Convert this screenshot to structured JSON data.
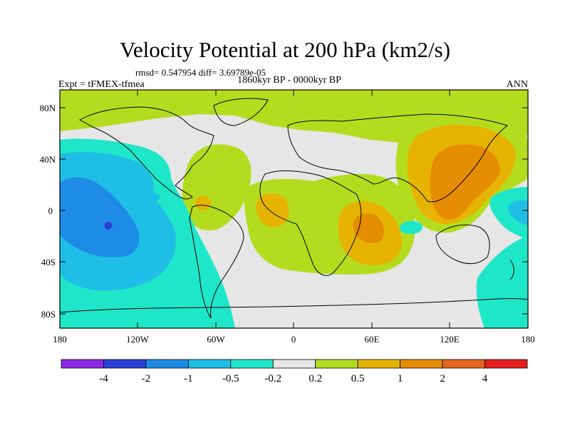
{
  "title": "Velocity Potential at 200 hPa (km2/s)",
  "stats": "rmsd= 0.547954 diff= 3.69789e-05",
  "subtitle": "1860kyr BP - 0000kyr BP",
  "experiment": "Expt = tFMEX-tfmea",
  "season": "ANN",
  "lat_labels": [
    "80N",
    "40N",
    "0",
    "40S",
    "80S"
  ],
  "lon_labels": [
    "180",
    "120W",
    "60W",
    "0",
    "60E",
    "120E",
    "180"
  ],
  "colorbar": {
    "labels": [
      "-4",
      "-2",
      "-1",
      "-0.5",
      "-0.2",
      "0.2",
      "0.5",
      "1",
      "2",
      "4"
    ],
    "colors": [
      "#8c28e6",
      "#2a3fd6",
      "#1e8ce6",
      "#1ebee6",
      "#1ee6c8",
      "#e6e6e6",
      "#b4dc1e",
      "#e6b400",
      "#e68c00",
      "#e6641e",
      "#e61e1e"
    ]
  }
}
